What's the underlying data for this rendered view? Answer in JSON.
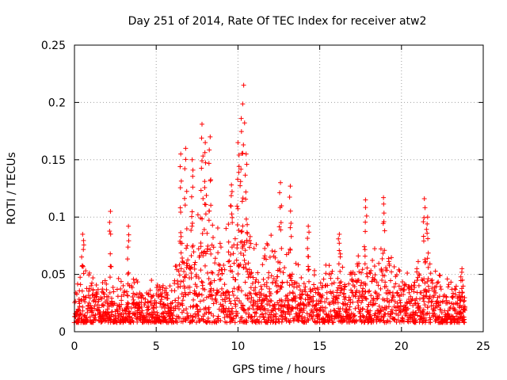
{
  "chart_data": {
    "type": "scatter",
    "title": "Day 251 of 2014, Rate Of TEC Index for receiver atw2",
    "xlabel": "GPS time / hours",
    "ylabel": "ROTI / TECUs",
    "xlim": [
      0,
      25
    ],
    "ylim": [
      0,
      0.25
    ],
    "xticks": [
      "0",
      "5",
      "10",
      "15",
      "20",
      "25"
    ],
    "yticks": [
      "0",
      "0.05",
      "0.1",
      "0.15",
      "0.2",
      "0.25"
    ],
    "grid": true,
    "marker": "+",
    "series_color": "#ff0000",
    "series": [
      {
        "name": "ROTI",
        "envelope": {
          "hours": [
            0,
            0.5,
            1,
            1.5,
            2,
            2.5,
            3,
            3.5,
            4,
            4.5,
            5,
            5.5,
            6,
            6.5,
            7,
            7.5,
            8,
            8.5,
            9,
            9.5,
            10,
            10.5,
            11,
            11.5,
            12,
            12.5,
            13,
            13.5,
            14,
            14.5,
            15,
            15.5,
            16,
            16.5,
            17,
            17.5,
            18,
            18.5,
            19,
            19.5,
            20,
            20.5,
            21,
            21.5,
            22,
            22.5,
            23,
            23.5,
            23.9
          ],
          "typical_max": [
            0.035,
            0.055,
            0.05,
            0.05,
            0.055,
            0.05,
            0.045,
            0.045,
            0.04,
            0.045,
            0.04,
            0.045,
            0.05,
            0.09,
            0.1,
            0.11,
            0.11,
            0.1,
            0.09,
            0.1,
            0.11,
            0.09,
            0.08,
            0.07,
            0.09,
            0.08,
            0.07,
            0.06,
            0.06,
            0.055,
            0.055,
            0.06,
            0.06,
            0.055,
            0.065,
            0.07,
            0.07,
            0.075,
            0.08,
            0.07,
            0.06,
            0.05,
            0.06,
            0.07,
            0.06,
            0.05,
            0.05,
            0.04,
            0.035
          ],
          "typical_min": 0.008
        },
        "peaks": [
          {
            "x": 0.5,
            "y": 0.085
          },
          {
            "x": 2.2,
            "y": 0.105
          },
          {
            "x": 3.3,
            "y": 0.092
          },
          {
            "x": 6.5,
            "y": 0.155
          },
          {
            "x": 6.8,
            "y": 0.16
          },
          {
            "x": 7.2,
            "y": 0.15
          },
          {
            "x": 7.8,
            "y": 0.181
          },
          {
            "x": 8.0,
            "y": 0.165
          },
          {
            "x": 8.3,
            "y": 0.17
          },
          {
            "x": 9.6,
            "y": 0.128
          },
          {
            "x": 10.0,
            "y": 0.165
          },
          {
            "x": 10.2,
            "y": 0.186
          },
          {
            "x": 10.35,
            "y": 0.215
          },
          {
            "x": 10.5,
            "y": 0.155
          },
          {
            "x": 12.6,
            "y": 0.13
          },
          {
            "x": 13.2,
            "y": 0.127
          },
          {
            "x": 14.3,
            "y": 0.092
          },
          {
            "x": 16.2,
            "y": 0.085
          },
          {
            "x": 17.8,
            "y": 0.115
          },
          {
            "x": 18.9,
            "y": 0.117
          },
          {
            "x": 21.4,
            "y": 0.116
          },
          {
            "x": 21.6,
            "y": 0.1
          },
          {
            "x": 23.7,
            "y": 0.055
          }
        ]
      }
    ]
  }
}
